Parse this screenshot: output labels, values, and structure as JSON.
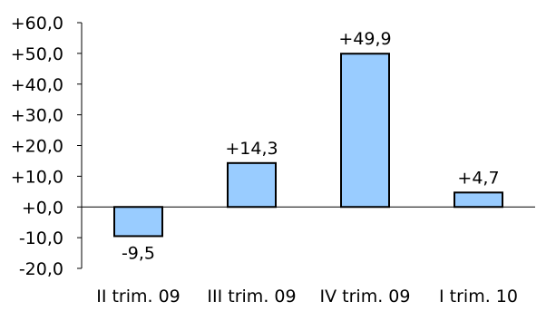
{
  "chart_data": {
    "type": "bar",
    "categories": [
      "II trim. 09",
      "III trim. 09",
      "IV trim. 09",
      "I trim. 10"
    ],
    "values": [
      -9.5,
      14.3,
      49.9,
      4.7
    ],
    "data_labels": [
      "-9,5",
      "+14,3",
      "+49,9",
      "+4,7"
    ],
    "y_ticks": [
      {
        "value": 60,
        "label": "+60,0"
      },
      {
        "value": 50,
        "label": "+50,0"
      },
      {
        "value": 40,
        "label": "+40,0"
      },
      {
        "value": 30,
        "label": "+30,0"
      },
      {
        "value": 20,
        "label": "+20,0"
      },
      {
        "value": 10,
        "label": "+10,0"
      },
      {
        "value": 0,
        "label": "+0,0"
      },
      {
        "value": -10,
        "label": "-10,0"
      },
      {
        "value": -20,
        "label": "-20,0"
      }
    ],
    "ylim": [
      -20,
      60
    ],
    "title": "",
    "xlabel": "",
    "ylabel": "",
    "grid": false,
    "legend": "none",
    "colors": {
      "bar_fill": "#99ccff",
      "bar_stroke": "#000000",
      "axis": "#000000",
      "positive_text": "#000000",
      "negative_text": "#ff0000"
    }
  }
}
